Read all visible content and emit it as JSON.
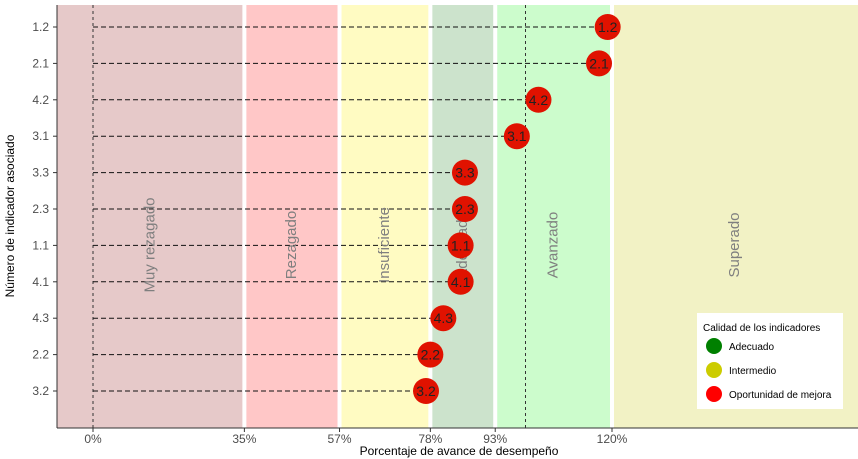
{
  "chart_data": {
    "type": "scatter",
    "title": "",
    "xlabel": "Porcentaje de avance de desempeño",
    "ylabel": "Número de indicador asociado",
    "xlim": [
      -0.2,
      1.98
    ],
    "x_ticks": [
      0,
      0.35,
      0.57,
      0.78,
      0.93,
      1.2
    ],
    "x_tick_labels": [
      "0%",
      "35%",
      "57%",
      "78%",
      "93%",
      "120%"
    ],
    "categories": [
      "1.2",
      "2.1",
      "4.2",
      "3.1",
      "3.3",
      "2.3",
      "1.1",
      "4.1",
      "4.3",
      "2.2",
      "3.2"
    ],
    "values": [
      1.19,
      1.17,
      1.03,
      0.98,
      0.86,
      0.86,
      0.85,
      0.85,
      0.81,
      0.78,
      0.77
    ],
    "point_color": "#E01200",
    "zones": [
      {
        "label": "Muy rezagado",
        "from": -0.2,
        "to": 0.35,
        "color": "#E6C9C9"
      },
      {
        "label": "Rezagado",
        "from": 0.35,
        "to": 0.57,
        "color": "#FFC7C7"
      },
      {
        "label": "Insuficiente",
        "from": 0.57,
        "to": 0.78,
        "color": "#FFFBC2"
      },
      {
        "label": "Adecuado",
        "from": 0.78,
        "to": 0.93,
        "color": "#CCE3CC"
      },
      {
        "label": "Avanzado",
        "from": 0.93,
        "to": 1.2,
        "color": "#CCFCCC"
      },
      {
        "label": "Superado",
        "from": 1.2,
        "to": 1.98,
        "color": "#F2F2C5"
      }
    ],
    "reference_lines": [
      0,
      1
    ],
    "legend": {
      "title": "Calidad de los indicadores",
      "position": "bottom-right",
      "items": [
        {
          "label": "Adecuado",
          "color": "#008000"
        },
        {
          "label": "Intermedio",
          "color": "#CCCC00"
        },
        {
          "label": "Oportunidad de mejora",
          "color": "#FF0000"
        }
      ]
    }
  }
}
